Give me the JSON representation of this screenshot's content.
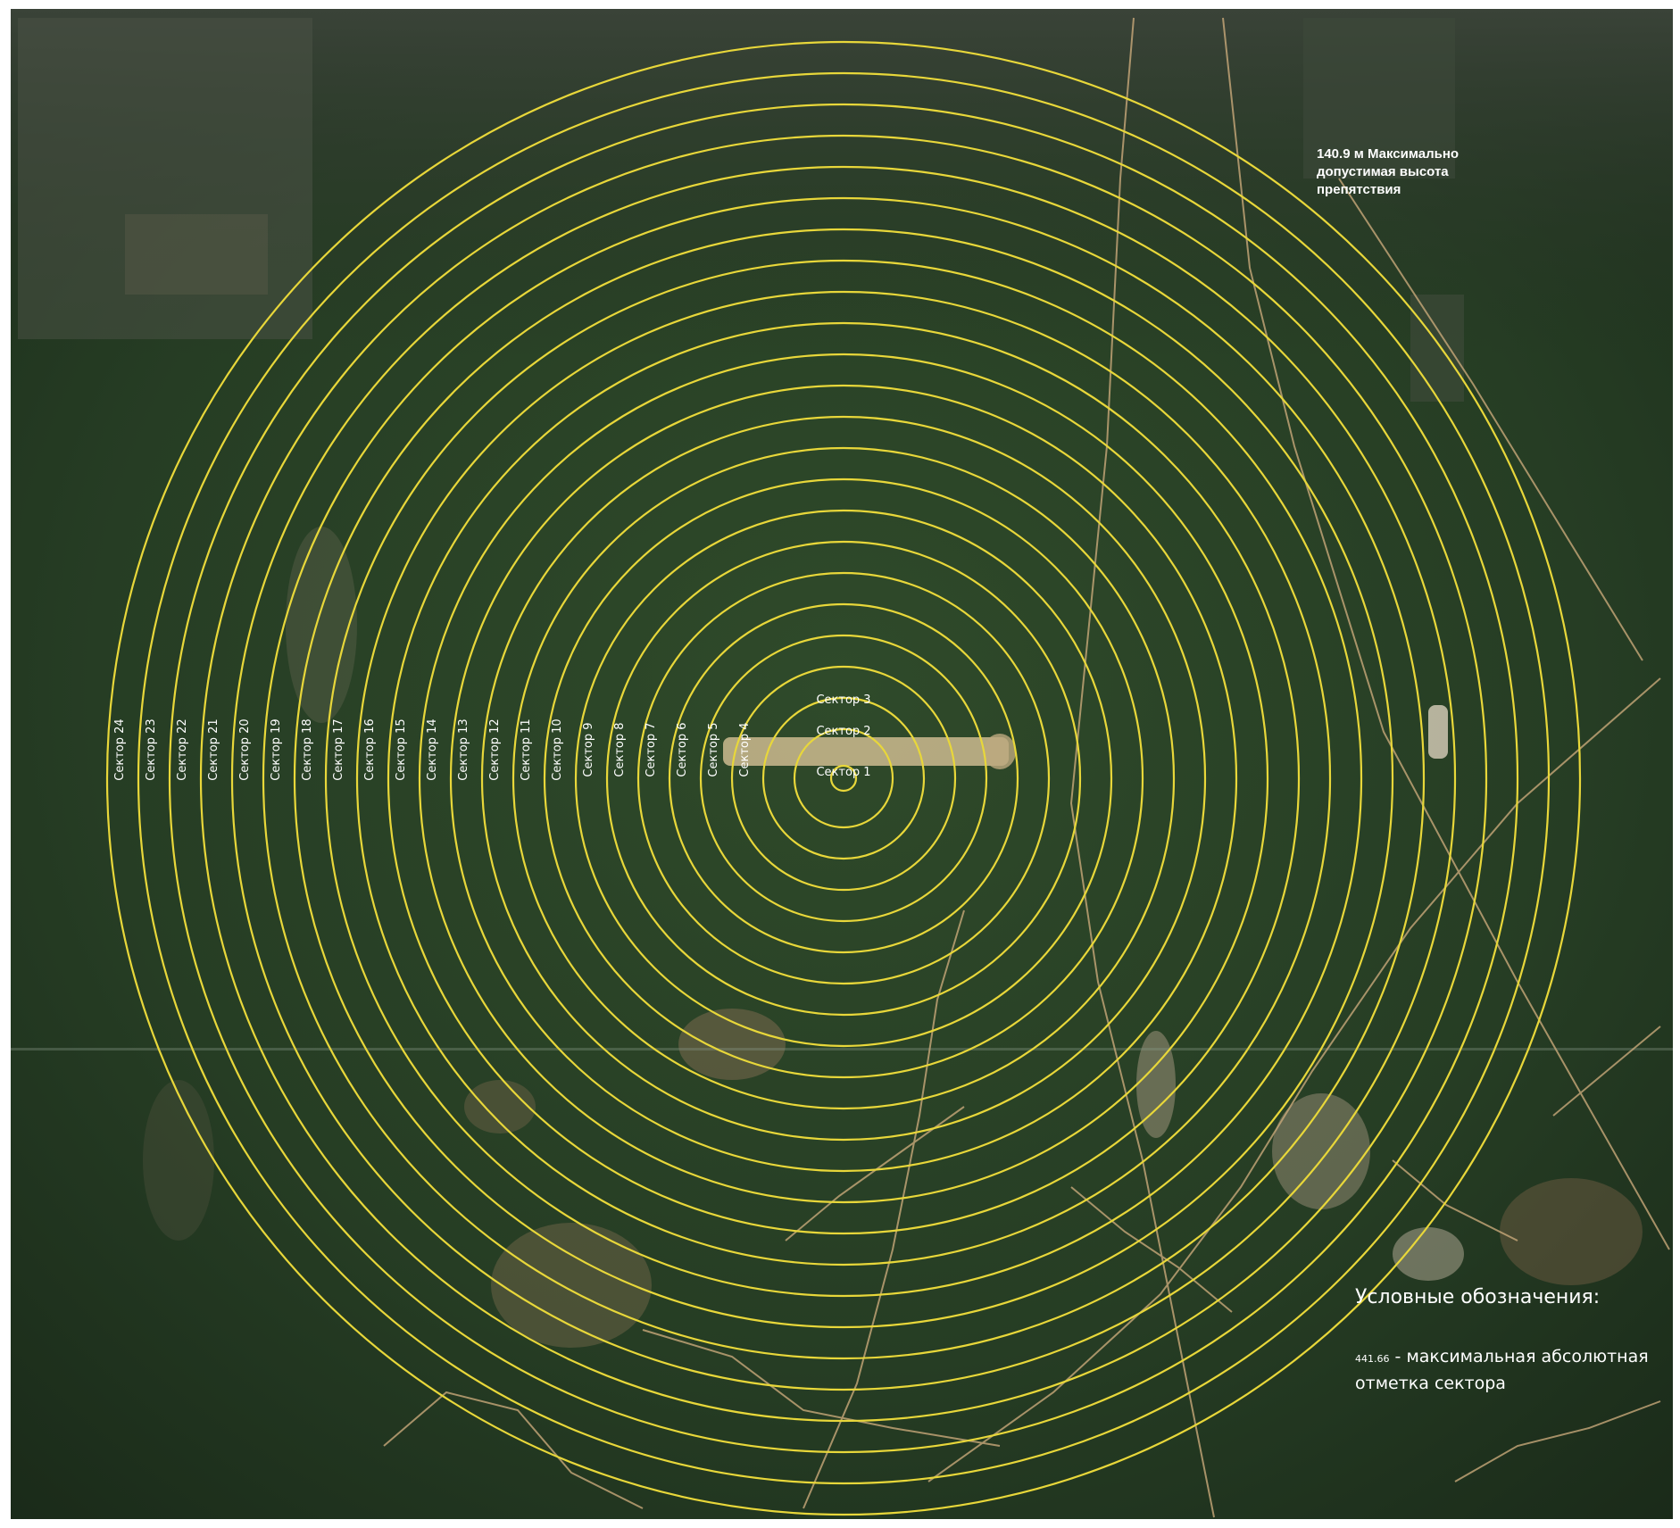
{
  "note": {
    "lines": [
      "140.9 м Максимально",
      "допустимая высота",
      "препятствия"
    ]
  },
  "sectors": [
    "Сектор 1",
    "Сектор 2",
    "Сектор 3",
    "Сектор 4",
    "Сектор 5",
    "Сектор 6",
    "Сектор 7",
    "Сектор 8",
    "Сектор 9",
    "Сектор 10",
    "Сектор 11",
    "Сектор 12",
    "Сектор 13",
    "Сектор 14",
    "Сектор 15",
    "Сектор 16",
    "Сектор 17",
    "Сектор 18",
    "Сектор 19",
    "Сектор 20",
    "Сектор 21",
    "Сектор 22",
    "Сектор 23",
    "Сектор 24"
  ],
  "legend": {
    "title": "Условные обозначения:",
    "value": "441.66",
    "separator": " - ",
    "desc_line1": "максимальная абсолютная",
    "desc_line2": "отметка сектора"
  },
  "colors": {
    "ring": "#e8d73a",
    "terrain_dark": "#1c2a1a",
    "terrain_mid": "#2e4a2a",
    "clearing": "#7a6a4e",
    "runway": "#cdbb8f",
    "road": "#c9a97a"
  }
}
